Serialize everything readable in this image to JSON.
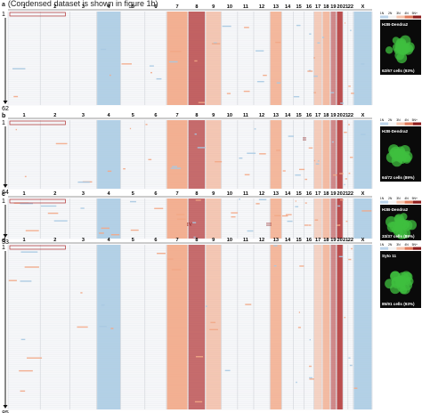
{
  "caption": "(Condensed dataset is shown in figure 1b)",
  "chromosomes": [
    "1",
    "2",
    "3",
    "4",
    "5",
    "6",
    "7",
    "8",
    "9",
    "10",
    "11",
    "12",
    "13",
    "14",
    "15",
    "16",
    "17",
    "18",
    "19",
    "20",
    "21",
    "22",
    "X"
  ],
  "panels": [
    {
      "letter": "a",
      "first": "1",
      "last": "62",
      "stain": "H2B-Dendra2",
      "cells": "62/67 cells (93%)",
      "romans": []
    },
    {
      "letter": "b",
      "first": "1",
      "last": "64",
      "stain": "H2B-Dendra2",
      "cells": "64/72 cells (89%)",
      "romans": [
        "II"
      ]
    },
    {
      "letter": "c",
      "first": "1",
      "last": "33",
      "stain": "H2B-Dendra2",
      "cells": "33/37 cells (89%)",
      "romans": [
        "IV",
        "III"
      ]
    },
    {
      "letter": "d",
      "first": "1",
      "last": "85",
      "stain": "Syto 11",
      "cells": "85/91 cells (93%)",
      "romans": []
    }
  ],
  "copy_scale": [
    "1N",
    "2N",
    "3N",
    "4N",
    "5N+"
  ],
  "colors": {
    "loss": "#a7c9e2",
    "gain": "#f2a786",
    "strong_gain": "#b03030",
    "grid": "#e6e8ec",
    "micro_bg": "#0a0a0a",
    "micro_cell": "#3fbf3f"
  }
}
